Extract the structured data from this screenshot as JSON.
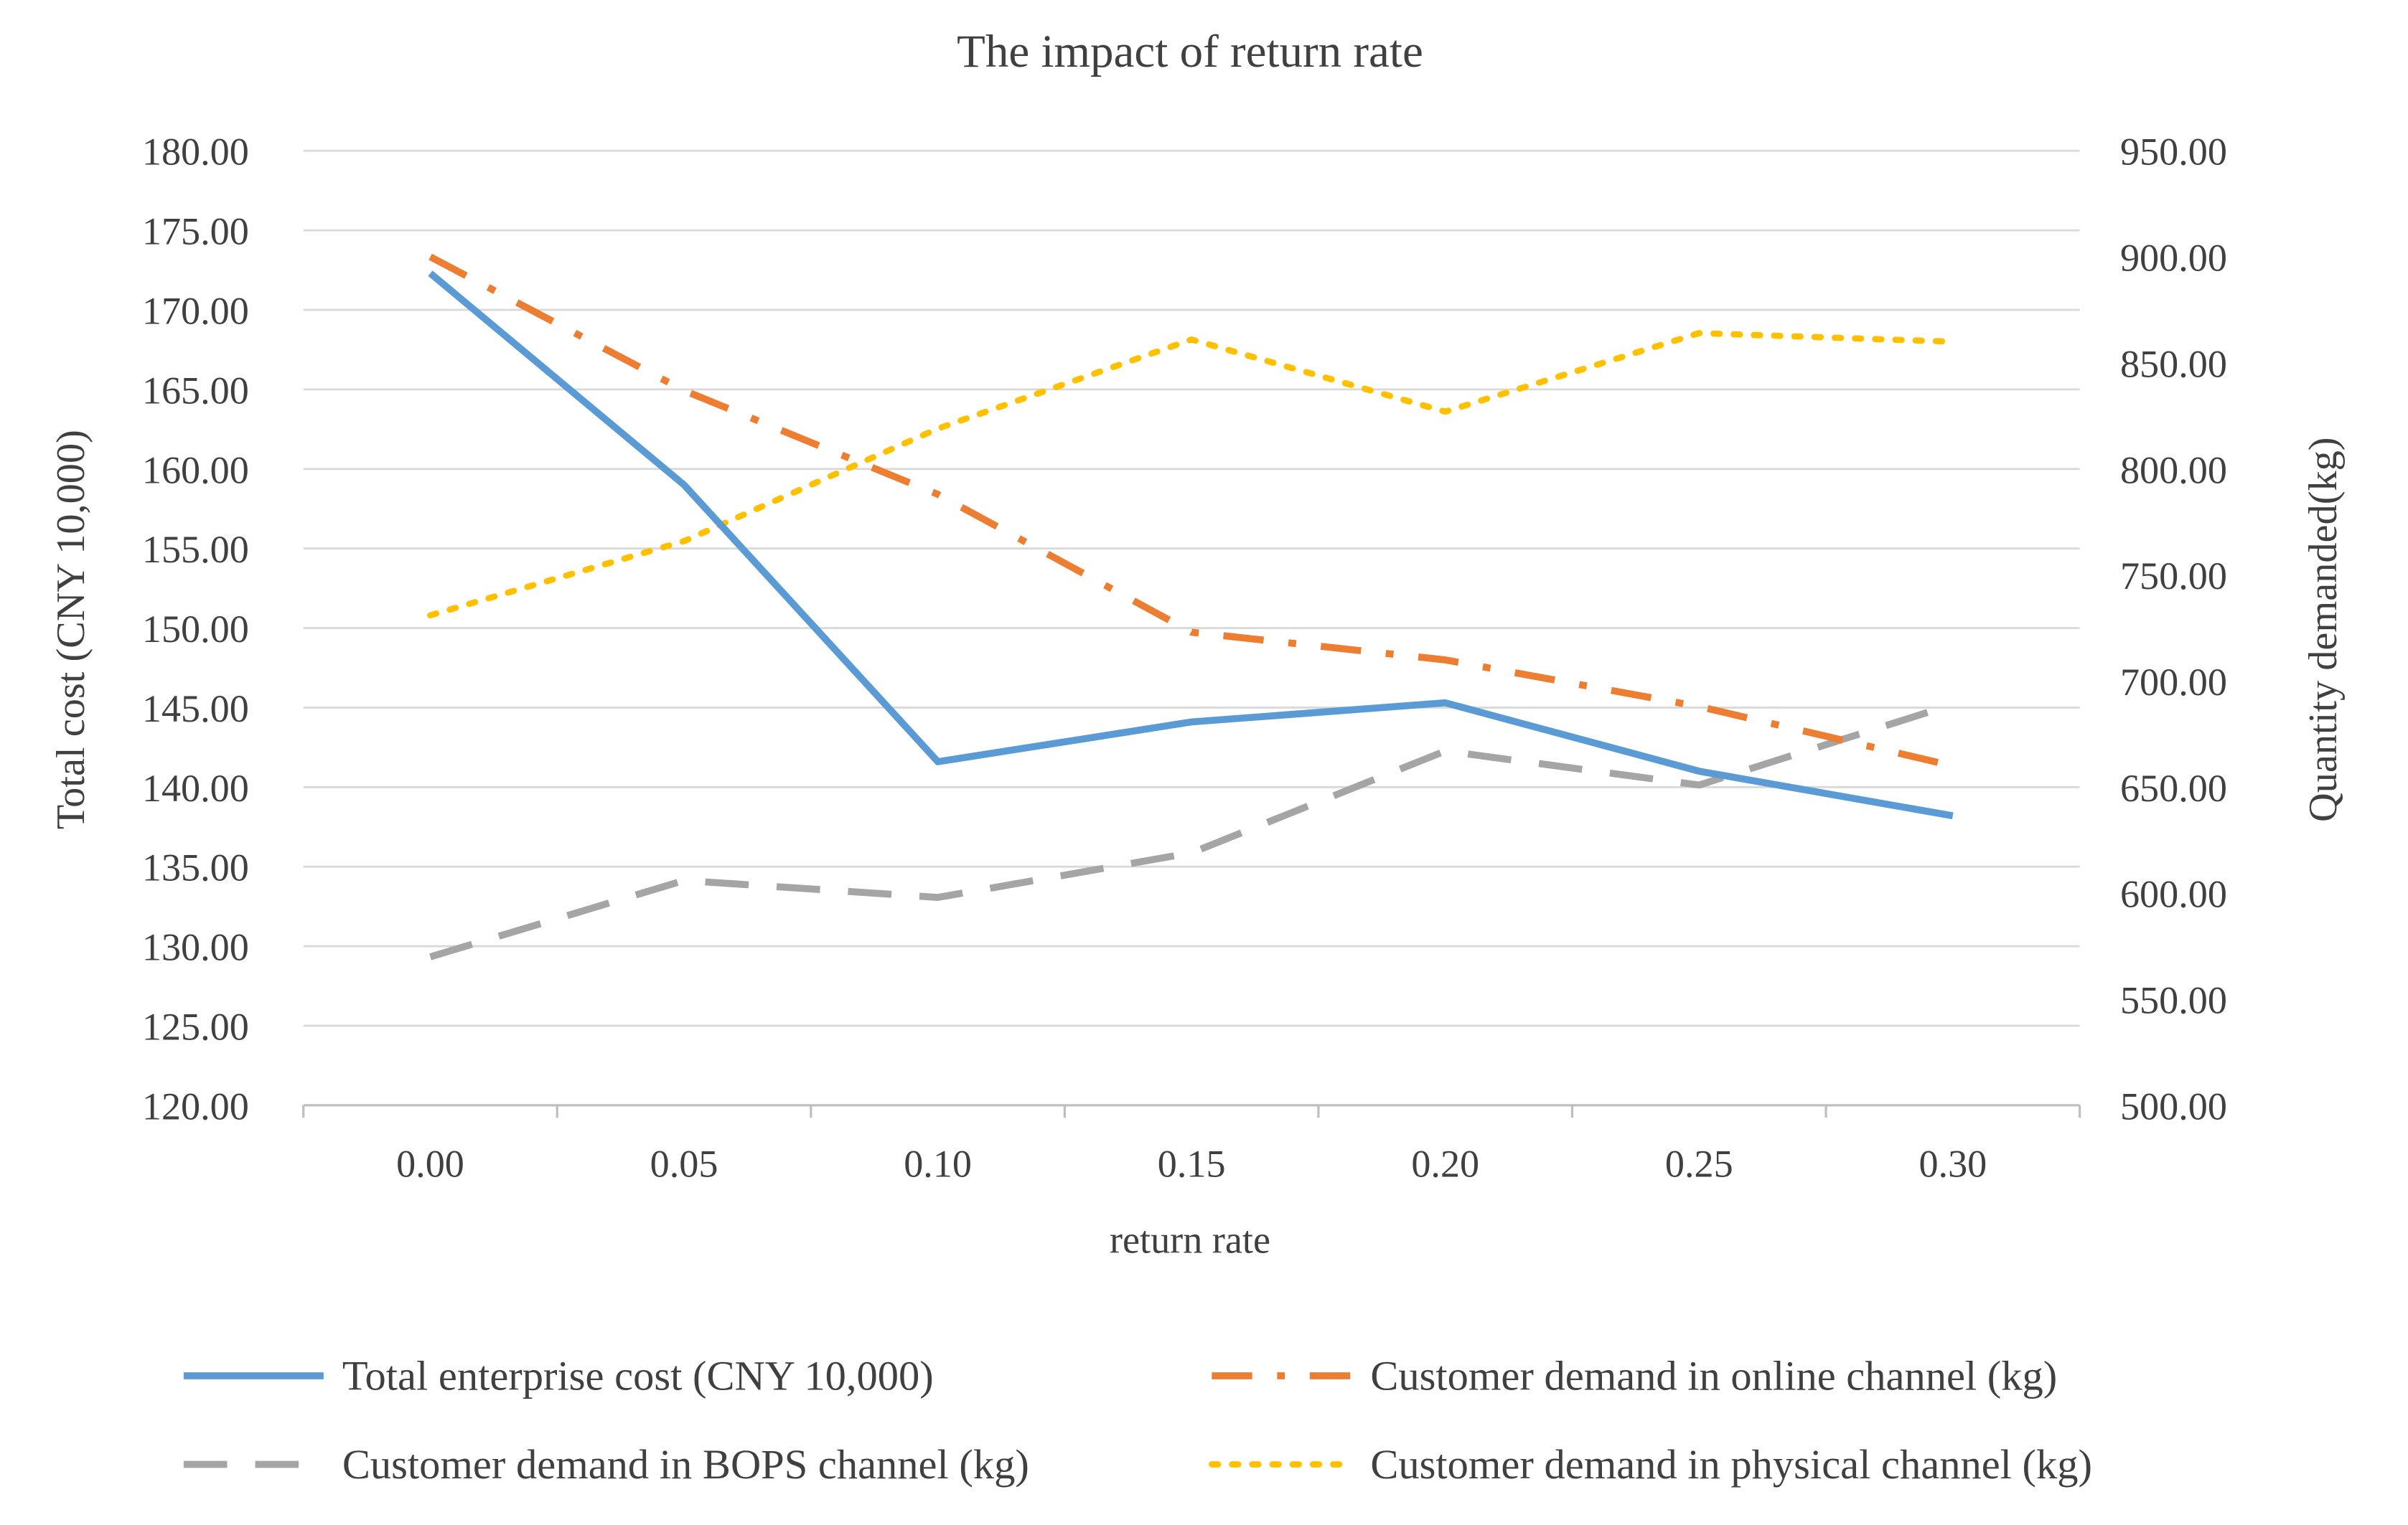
{
  "chart_data": {
    "type": "line",
    "title": "The impact of return rate",
    "xlabel": "return rate",
    "ylabel_left": "Total cost (CNY 10,000)",
    "ylabel_right": "Quantity demanded(kg)",
    "categories": [
      "0.00",
      "0.05",
      "0.10",
      "0.15",
      "0.20",
      "0.25",
      "0.30"
    ],
    "x": [
      0.0,
      0.05,
      0.1,
      0.15,
      0.2,
      0.25,
      0.3
    ],
    "ylim_left": [
      120,
      180
    ],
    "ylim_right": [
      500,
      950
    ],
    "yticks_left": [
      "120.00",
      "125.00",
      "130.00",
      "135.00",
      "140.00",
      "145.00",
      "150.00",
      "155.00",
      "160.00",
      "165.00",
      "170.00",
      "175.00",
      "180.00"
    ],
    "yticks_right": [
      "500.00",
      "550.00",
      "600.00",
      "650.00",
      "700.00",
      "750.00",
      "800.00",
      "850.00",
      "900.00",
      "950.00"
    ],
    "grid": true,
    "legend_position": "bottom",
    "series": [
      {
        "name": "Total enterprise cost (CNY 10,000)",
        "axis": "left",
        "style": "solid",
        "color": "#5b9bd5",
        "values": [
          172.3,
          159.0,
          141.6,
          144.1,
          145.3,
          141.0,
          138.2
        ]
      },
      {
        "name": "Customer demand in online channel (kg)",
        "axis": "right",
        "style": "dashdot",
        "color": "#ed7d31",
        "values": [
          900,
          837,
          788,
          723,
          710,
          688,
          660
        ]
      },
      {
        "name": "Customer demand in BOPS channel (kg)",
        "axis": "right",
        "style": "dashed",
        "color": "#a5a5a5",
        "values": [
          570,
          606,
          598,
          619,
          667,
          651,
          689
        ]
      },
      {
        "name": "Customer demand in physical channel (kg)",
        "axis": "right",
        "style": "dotted",
        "color": "#ffc000",
        "values": [
          731,
          766,
          819,
          861,
          827,
          864,
          860
        ]
      }
    ]
  }
}
